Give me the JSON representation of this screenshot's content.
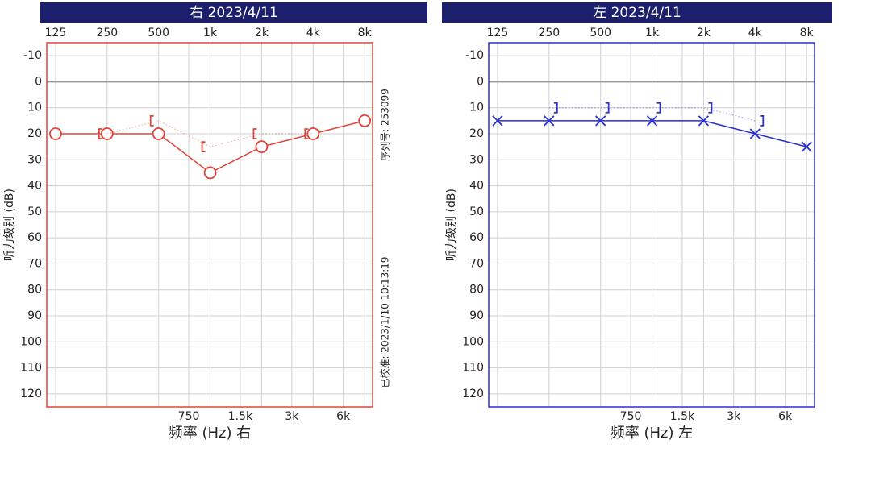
{
  "chart_data": [
    {
      "type": "line",
      "title": "右 2023/4/11",
      "xlabel": "频率 (Hz) 右",
      "ylabel": "听力级别 (dB)",
      "annotations": [
        "序列号: 253099",
        "已校准: 2023/1/10 10:13:19"
      ],
      "x": [
        125,
        250,
        500,
        1000,
        2000,
        4000,
        8000
      ],
      "xscale": "log",
      "xlim": [
        111,
        8900
      ],
      "ylim": [
        125,
        -15
      ],
      "xticks": [
        125,
        250,
        500,
        {
          "value": 1000,
          "label": "1k"
        },
        {
          "value": 2000,
          "label": "2k"
        },
        {
          "value": 4000,
          "label": "4k"
        },
        {
          "value": 8000,
          "label": "8k"
        }
      ],
      "x2ticks": [
        750,
        {
          "value": 1500,
          "label": "1.5k"
        },
        {
          "value": 3000,
          "label": "3k"
        },
        {
          "value": 6000,
          "label": "6k"
        }
      ],
      "yticks": [
        -10,
        0,
        10,
        20,
        30,
        40,
        50,
        60,
        70,
        80,
        90,
        100,
        110,
        120
      ],
      "reference_line": 0,
      "grid": true,
      "frame_color": "#e0453a",
      "series": [
        {
          "color": "#e0453a",
          "marker": "o",
          "line": "solid",
          "values": [
            20,
            20,
            20,
            35,
            25,
            20,
            15
          ]
        },
        {
          "color": "#e0453a",
          "marker": "[",
          "line": "dotted",
          "values": [
            null,
            20,
            15,
            25,
            20,
            20,
            null
          ]
        }
      ]
    },
    {
      "type": "line",
      "title": "左 2023/4/11",
      "xlabel": "频率 (Hz) 左",
      "ylabel": "听力级别 (dB)",
      "x": [
        125,
        250,
        500,
        1000,
        2000,
        4000,
        8000
      ],
      "xscale": "log",
      "xlim": [
        111,
        8900
      ],
      "ylim": [
        125,
        -15
      ],
      "xticks": [
        125,
        250,
        500,
        {
          "value": 1000,
          "label": "1k"
        },
        {
          "value": 2000,
          "label": "2k"
        },
        {
          "value": 4000,
          "label": "4k"
        },
        {
          "value": 8000,
          "label": "8k"
        }
      ],
      "x2ticks": [
        750,
        {
          "value": 1500,
          "label": "1.5k"
        },
        {
          "value": 3000,
          "label": "3k"
        },
        {
          "value": 6000,
          "label": "6k"
        }
      ],
      "yticks": [
        -10,
        0,
        10,
        20,
        30,
        40,
        50,
        60,
        70,
        80,
        90,
        100,
        110,
        120
      ],
      "reference_line": 0,
      "grid": true,
      "frame_color": "#2a2fd0",
      "series": [
        {
          "color": "#2a2fd0",
          "marker": "x",
          "line": "solid",
          "values": [
            15,
            15,
            15,
            15,
            15,
            20,
            25
          ]
        },
        {
          "color": "#2a2fd0",
          "marker": "]",
          "line": "dotted",
          "values": [
            null,
            10,
            10,
            10,
            10,
            15,
            null
          ]
        }
      ]
    }
  ]
}
